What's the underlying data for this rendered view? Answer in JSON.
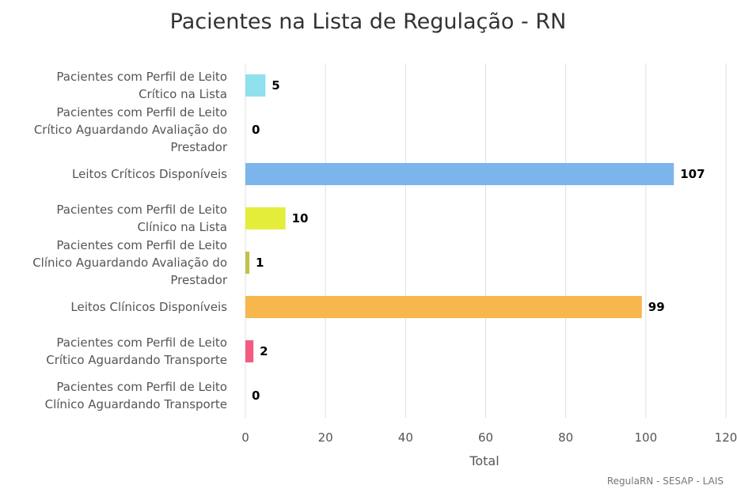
{
  "chart_data": {
    "type": "bar",
    "orientation": "horizontal",
    "title": "Pacientes na Lista de Regulação - RN",
    "xlabel": "Total",
    "ylabel": "",
    "xlim": [
      0,
      120
    ],
    "ticks": [
      "0",
      "20",
      "40",
      "60",
      "80",
      "100",
      "120"
    ],
    "grid": true,
    "categories": [
      [
        "Pacientes com Perfil de Leito",
        "Crítico na Lista"
      ],
      [
        "Pacientes com Perfil de Leito",
        "Crítico Aguardando Avaliação do",
        "Prestador"
      ],
      [
        "Leitos Críticos Disponíveis"
      ],
      [
        "Pacientes com Perfil de Leito",
        "Clínico na Lista"
      ],
      [
        "Pacientes com Perfil de Leito",
        "Clínico Aguardando Avaliação do",
        "Prestador"
      ],
      [
        "Leitos Clínicos Disponíveis"
      ],
      [
        "Pacientes com Perfil de Leito",
        "Crítico Aguardando Transporte"
      ],
      [
        "Pacientes com Perfil de Leito",
        "Clínico Aguardando Transporte"
      ]
    ],
    "values": [
      5,
      0,
      107,
      10,
      1,
      99,
      2,
      0
    ],
    "colors": [
      "#90e0ee",
      "#a8c64f",
      "#7cb5ec",
      "#e4ee3a",
      "#bfc24a",
      "#f7b74c",
      "#f15c80",
      "#9090a0"
    ]
  },
  "credits": "RegulaRN - SESAP - LAIS"
}
